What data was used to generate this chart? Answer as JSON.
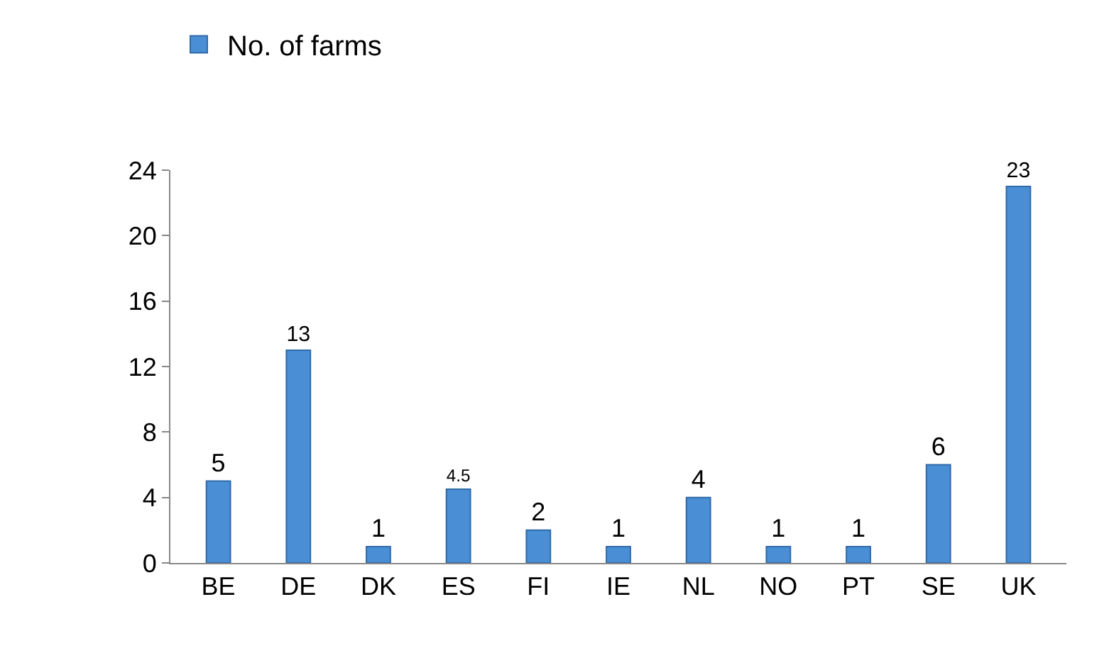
{
  "chart_data": {
    "type": "bar",
    "categories": [
      "BE",
      "DE",
      "DK",
      "ES",
      "FI",
      "IE",
      "NL",
      "NO",
      "PT",
      "SE",
      "UK"
    ],
    "series": [
      {
        "name": "No. of farms",
        "color": "#4a8fd6",
        "values": [
          5,
          13,
          1,
          4.5,
          2,
          1,
          4,
          1,
          1,
          6,
          23
        ]
      }
    ],
    "ylim": [
      0,
      24
    ],
    "yticks": [
      0,
      4,
      8,
      12,
      16,
      20,
      24
    ],
    "grid": false,
    "legend": "top left",
    "data_labels": true
  }
}
